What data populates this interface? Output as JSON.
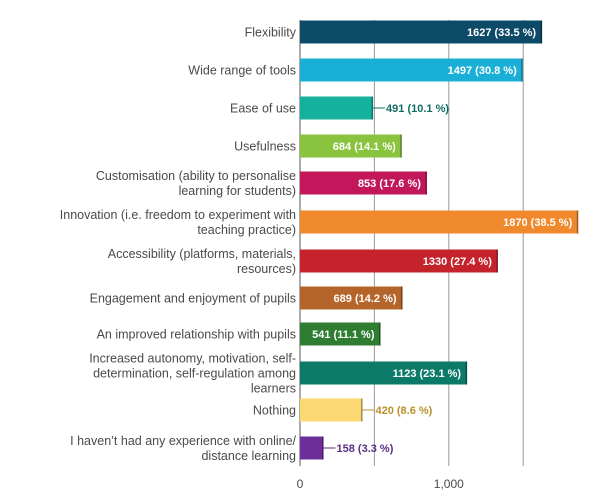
{
  "chart_data": {
    "type": "bar",
    "orientation": "horizontal",
    "title": "",
    "xlabel": "",
    "ylabel": "",
    "xlim": [
      0,
      1870
    ],
    "grid": true,
    "x_ticks": [
      {
        "value": 0,
        "label": "0"
      },
      {
        "value": 1000,
        "label": "1,000"
      }
    ],
    "categories": [
      "Flexibility",
      "Wide range of tools",
      "Ease of use",
      "Usefulness",
      "Customisation (ability to personalise learning for students)",
      "Innovation (i.e. freedom to experiment with teaching practice)",
      "Accessibility (platforms, materials, resources)",
      "Engagement and enjoyment of pupils",
      "An improved relationship with pupils",
      "Increased autonomy, motivation, self-determination, self-regulation among learners",
      "Nothing",
      "I haven’t had any experience with online/ distance learning"
    ],
    "category_lines": [
      [
        "Flexibility"
      ],
      [
        "Wide range of tools"
      ],
      [
        "Ease of use"
      ],
      [
        "Usefulness"
      ],
      [
        "Customisation (ability to personalise",
        "learning for students)"
      ],
      [
        "Innovation (i.e. freedom to experiment with",
        "teaching practice)"
      ],
      [
        "Accessibility (platforms, materials,",
        "resources)"
      ],
      [
        "Engagement and enjoyment of pupils"
      ],
      [
        "An improved relationship with pupils"
      ],
      [
        "Increased autonomy, motivation, self-",
        "determination, self-regulation among",
        "learners"
      ],
      [
        "Nothing"
      ],
      [
        "I haven’t had any experience with online/",
        "distance learning"
      ]
    ],
    "values": [
      1627,
      1497,
      491,
      684,
      853,
      1870,
      1330,
      689,
      541,
      1123,
      420,
      158
    ],
    "value_labels": [
      "1627 (33.5 %)",
      "1497 (30.8 %)",
      "491 (10.1 %)",
      "684 (14.1 %)",
      "853 (17.6 %)",
      "1870 (38.5 %)",
      "1330 (27.4 %)",
      "689 (14.2 %)",
      "541 (11.1 %)",
      "1123 (23.1 %)",
      "420 (8.6 %)",
      "158 (3.3 %)"
    ],
    "label_outside": [
      false,
      false,
      true,
      false,
      false,
      false,
      false,
      false,
      false,
      false,
      true,
      true
    ],
    "colors": [
      "#0d4a67",
      "#1aafd6",
      "#14b29d",
      "#8ac43f",
      "#c2185b",
      "#f0892b",
      "#c4232c",
      "#b5652a",
      "#2e7d32",
      "#0b7a68",
      "#fbd872",
      "#6d2f9c"
    ],
    "outside_label_colors": [
      "",
      "",
      "#0f6e63",
      "",
      "",
      "",
      "",
      "",
      "",
      "",
      "#b8912a",
      "#5a2c84"
    ]
  }
}
